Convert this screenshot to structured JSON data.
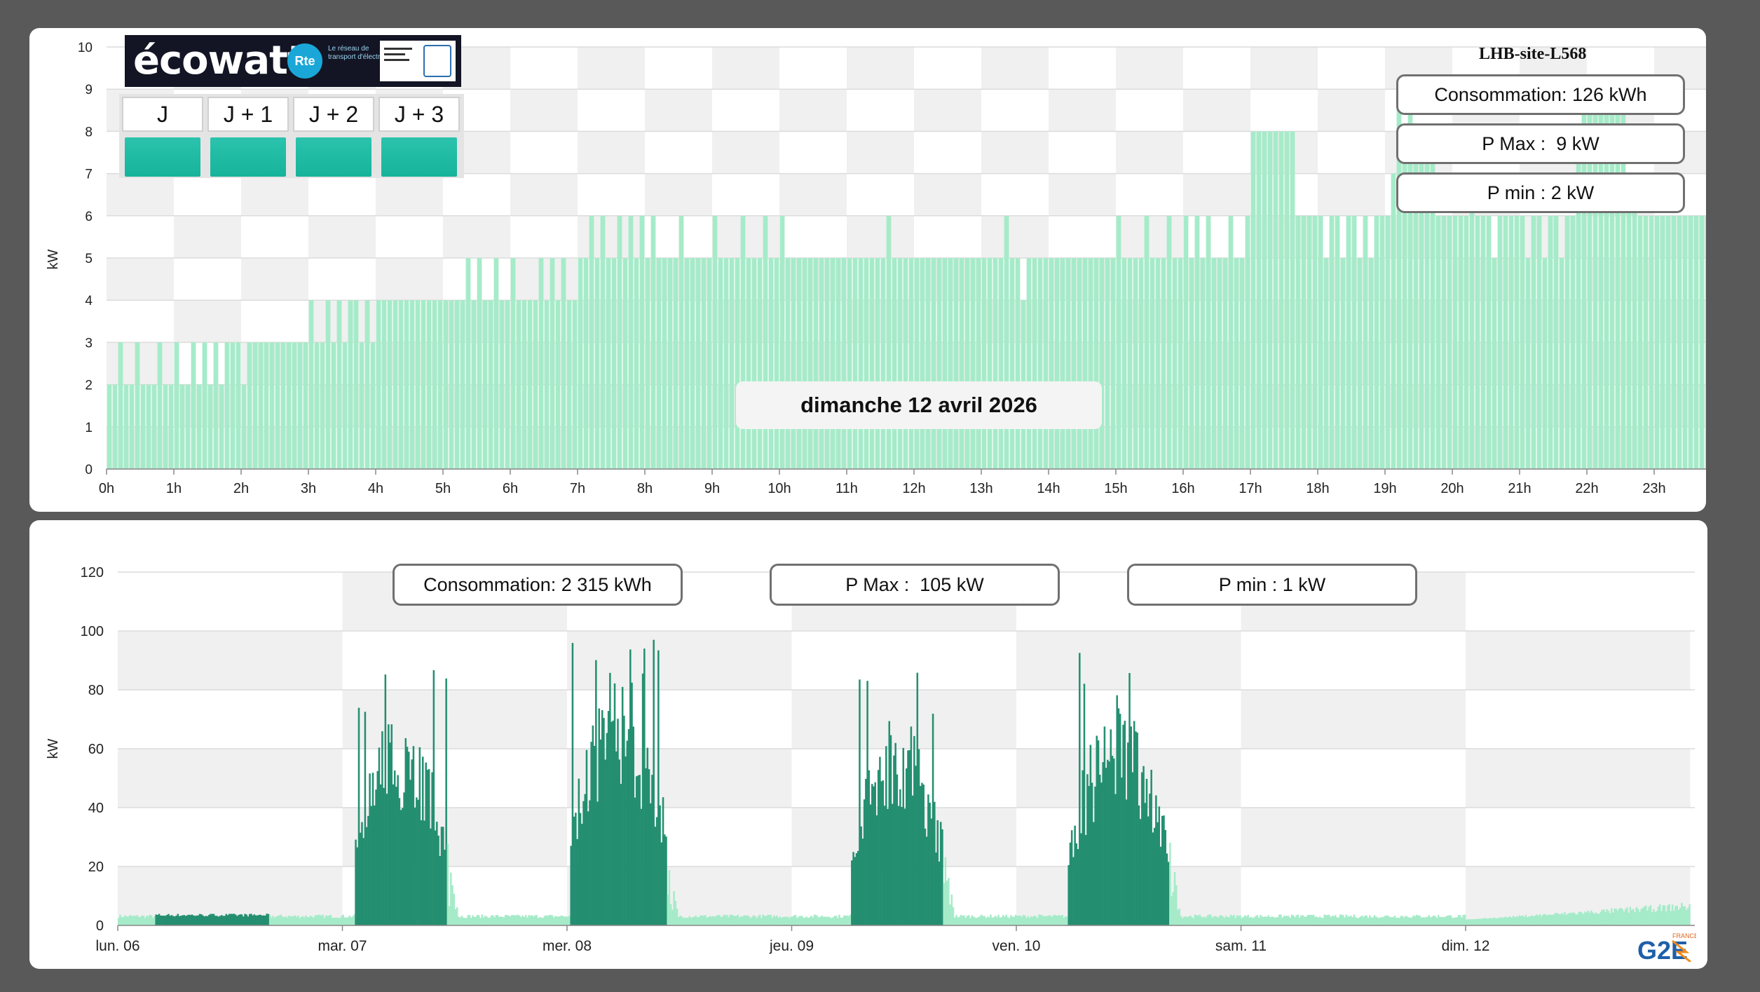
{
  "colors": {
    "top_bar": "#a6ebc9",
    "week_dark": "#248f70",
    "week_light": "#a6ebc9",
    "band_grey": "#f0f0f0",
    "ecowatt_signal": "#1fbba2"
  },
  "ecowatt": {
    "logo_text": "écowatt",
    "rte_text": "Rte",
    "rte_caption": "Le réseau de transport d'électricité",
    "days": [
      "J",
      "J + 1",
      "J + 2",
      "J + 3"
    ]
  },
  "top": {
    "site": "LHB-site-L568",
    "stats": {
      "consommation": "Consommation: 126 kWh",
      "pmax": "P Max :  9 kW",
      "pmin": "P min : 2 kW"
    },
    "date_label": "dimanche 12 avril 2026"
  },
  "bottom": {
    "stats": {
      "consommation": "Consommation: 2 315 kWh",
      "pmax": "P Max :  105 kW",
      "pmin": "P min : 1 kW"
    }
  },
  "logo": {
    "text": "G2E",
    "tag": "FRANCE"
  },
  "chart_data": [
    {
      "type": "bar",
      "ylabel": "kW",
      "ylim": [
        0,
        10
      ],
      "yticks": [
        0,
        1,
        2,
        3,
        4,
        5,
        6,
        7,
        8,
        9,
        10
      ],
      "xlabels": [
        "0h",
        "1h",
        "2h",
        "3h",
        "4h",
        "5h",
        "6h",
        "7h",
        "8h",
        "9h",
        "10h",
        "11h",
        "12h",
        "13h",
        "14h",
        "15h",
        "16h",
        "17h",
        "18h",
        "19h",
        "20h",
        "21h",
        "22h",
        "23h",
        "0h"
      ],
      "interval_minutes": 5,
      "hourly_levels": [
        [
          2,
          2,
          3,
          2,
          2,
          3,
          2,
          2,
          2,
          3,
          2,
          2
        ],
        [
          3,
          2,
          2,
          3,
          2,
          3,
          2,
          3,
          2,
          3,
          3,
          3
        ],
        [
          2,
          3,
          3,
          3,
          3,
          3,
          3,
          3,
          3,
          3,
          3,
          3
        ],
        [
          4,
          3,
          3,
          4,
          3,
          4,
          3,
          4,
          4,
          3,
          4,
          3
        ],
        [
          4,
          4,
          4,
          4,
          4,
          4,
          4,
          4,
          4,
          4,
          4,
          4
        ],
        [
          4,
          4,
          4,
          4,
          5,
          4,
          5,
          4,
          4,
          5,
          4,
          4
        ],
        [
          5,
          4,
          4,
          4,
          4,
          5,
          4,
          5,
          4,
          5,
          4,
          4
        ],
        [
          5,
          5,
          6,
          5,
          6,
          5,
          5,
          6,
          5,
          6,
          5,
          6
        ],
        [
          5,
          6,
          5,
          5,
          5,
          5,
          6,
          5,
          5,
          5,
          5,
          5
        ],
        [
          6,
          5,
          5,
          5,
          5,
          6,
          5,
          5,
          5,
          6,
          5,
          5
        ],
        [
          6,
          5,
          5,
          5,
          5,
          5,
          5,
          5,
          5,
          5,
          5,
          5
        ],
        [
          5,
          5,
          5,
          5,
          5,
          5,
          5,
          6,
          5,
          5,
          5,
          5
        ],
        [
          5,
          5,
          5,
          5,
          5,
          5,
          5,
          5,
          5,
          5,
          5,
          5
        ],
        [
          5,
          5,
          5,
          5,
          6,
          5,
          5,
          4,
          5,
          5,
          5,
          5
        ],
        [
          5,
          5,
          5,
          5,
          5,
          5,
          5,
          5,
          5,
          5,
          5,
          5
        ],
        [
          6,
          5,
          5,
          5,
          5,
          6,
          5,
          5,
          5,
          6,
          5,
          5
        ],
        [
          6,
          5,
          6,
          5,
          6,
          5,
          5,
          5,
          6,
          5,
          5,
          6
        ],
        [
          8,
          8,
          8,
          8,
          8,
          8,
          8,
          8,
          6,
          6,
          6,
          6
        ],
        [
          6,
          5,
          6,
          6,
          5,
          6,
          6,
          5,
          6,
          5,
          6,
          6
        ],
        [
          6,
          7,
          9,
          8,
          9,
          8,
          8,
          8,
          8,
          6,
          6,
          6
        ],
        [
          6,
          6,
          6,
          7,
          6,
          6,
          6,
          5,
          6,
          6,
          6,
          6
        ],
        [
          6,
          5,
          6,
          6,
          5,
          6,
          6,
          5,
          6,
          6,
          8,
          9
        ],
        [
          9,
          9,
          9,
          9,
          9,
          9,
          9,
          7,
          7,
          6,
          6,
          6
        ],
        [
          6,
          6,
          6,
          6,
          6,
          6,
          6,
          6,
          6,
          6,
          5,
          6
        ],
        [
          6,
          6,
          6,
          6,
          6,
          6,
          6,
          6,
          6,
          6,
          6,
          6
        ],
        [
          6,
          6,
          6,
          6,
          6,
          6,
          5,
          6,
          6,
          6,
          6,
          6
        ]
      ]
    },
    {
      "type": "bar",
      "ylabel": "kW",
      "ylim": [
        0,
        120
      ],
      "yticks": [
        0,
        20,
        40,
        60,
        80,
        100,
        120
      ],
      "xlabels": [
        "lun. 06",
        "mar. 07",
        "mer. 08",
        "jeu. 09",
        "ven. 10",
        "sam. 11",
        "dim. 12"
      ],
      "baseline_kw": 2.5,
      "working_blocks": [
        {
          "day": 1,
          "start_hour": 1.2,
          "end_hour": 11.1,
          "peak_kw": 89
        },
        {
          "day": 2,
          "start_hour": 0.2,
          "end_hour": 10.5,
          "peak_kw": 105
        },
        {
          "day": 3,
          "start_hour": 6.2,
          "end_hour": 16.1,
          "peak_kw": 89
        },
        {
          "day": 4,
          "start_hour": 5.5,
          "end_hour": 16.2,
          "peak_kw": 93
        }
      ],
      "weekend_level_kw": [
        2,
        7
      ]
    }
  ]
}
